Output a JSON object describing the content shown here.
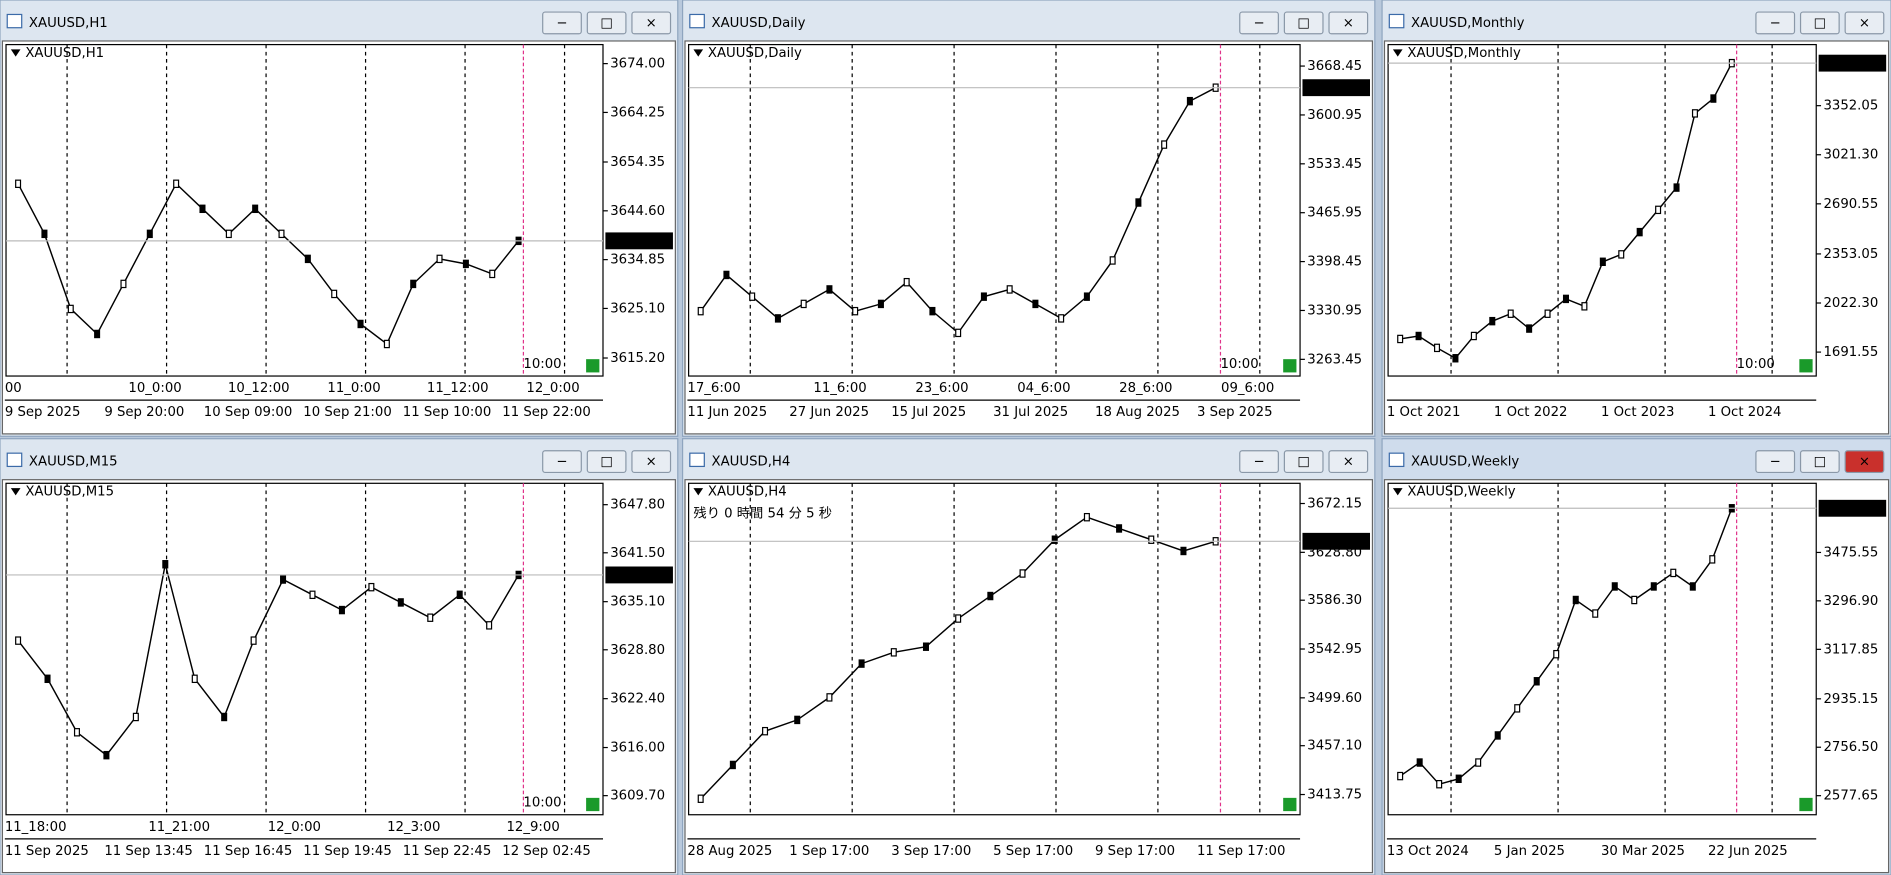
{
  "windows": [
    {
      "title": "XAUUSD,H1",
      "label": "XAUUSD,H1",
      "price_box": "3638.60",
      "time_label": "10:00",
      "active": false,
      "ylim": [
        3611.6,
        3677.8
      ],
      "yticks": [
        {
          "value": 3674.0,
          "label": "3674.00"
        },
        {
          "value": 3664.25,
          "label": "3664.25"
        },
        {
          "value": 3654.35,
          "label": "3654.35"
        },
        {
          "value": 3644.6,
          "label": "3644.60"
        },
        {
          "value": 3634.85,
          "label": "3634.85"
        },
        {
          "value": 3625.1,
          "label": "3625.10"
        },
        {
          "value": 3615.2,
          "label": "3615.20"
        }
      ],
      "inner_labels": [
        "00",
        "10_0:00",
        "10_12:00",
        "11_0:00",
        "11_12:00",
        "12_0:00"
      ],
      "outer_labels": [
        "9 Sep 2025",
        "9 Sep 20:00",
        "10 Sep 09:00",
        "10 Sep 21:00",
        "11 Sep 10:00",
        "11 Sep 22:00"
      ],
      "closes": [
        3650,
        3640,
        3625,
        3620,
        3630,
        3640,
        3650,
        3645,
        3640,
        3645,
        3640,
        3635,
        3628,
        3622,
        3618,
        3630,
        3635,
        3634,
        3632,
        3638.6
      ]
    },
    {
      "title": "XAUUSD,Daily",
      "label": "XAUUSD,Daily",
      "price_box": "3638.60",
      "time_label": "10:00",
      "active": false,
      "ylim": [
        3240.4,
        3698.1
      ],
      "yticks": [
        {
          "value": 3668.45,
          "label": "3668.45"
        },
        {
          "value": 3600.95,
          "label": "3600.95"
        },
        {
          "value": 3533.45,
          "label": "3533.45"
        },
        {
          "value": 3465.95,
          "label": "3465.95"
        },
        {
          "value": 3398.45,
          "label": "3398.45"
        },
        {
          "value": 3330.95,
          "label": "3330.95"
        },
        {
          "value": 3263.45,
          "label": "3263.45"
        }
      ],
      "inner_labels": [
        "17_6:00",
        "11_6:00",
        "23_6:00",
        "04_6:00",
        "28_6:00",
        "09_6:00"
      ],
      "outer_labels": [
        "11 Jun 2025",
        "27 Jun 2025",
        "15 Jul 2025",
        "31 Jul 2025",
        "18 Aug 2025",
        "3 Sep 2025"
      ],
      "closes": [
        3330,
        3380,
        3350,
        3320,
        3340,
        3360,
        3330,
        3340,
        3370,
        3330,
        3300,
        3350,
        3360,
        3340,
        3320,
        3350,
        3400,
        3480,
        3560,
        3620,
        3638.6
      ]
    },
    {
      "title": "XAUUSD,Monthly",
      "label": "XAUUSD,Monthly",
      "price_box": "3638.60",
      "time_label": "10:00",
      "active": false,
      "ylim": [
        1530.2,
        3763.6
      ],
      "yticks": [
        {
          "value": 3352.05,
          "label": "3352.05"
        },
        {
          "value": 3021.3,
          "label": "3021.30"
        },
        {
          "value": 2690.55,
          "label": "2690.55"
        },
        {
          "value": 2353.05,
          "label": "2353.05"
        },
        {
          "value": 2022.3,
          "label": "2022.30"
        },
        {
          "value": 1691.55,
          "label": "1691.55"
        }
      ],
      "inner_labels": [],
      "outer_labels": [
        "1 Oct 2021",
        "1 Oct 2022",
        "1 Oct 2023",
        "1 Oct 2024"
      ],
      "closes": [
        1780,
        1800,
        1720,
        1650,
        1800,
        1900,
        1950,
        1850,
        1950,
        2050,
        2000,
        2300,
        2350,
        2500,
        2650,
        2800,
        3300,
        3400,
        3638.6
      ]
    },
    {
      "title": "XAUUSD,M15",
      "label": "XAUUSD,M15",
      "price_box": "3638.60",
      "time_label": "10:00",
      "active": false,
      "ylim": [
        3607.2,
        3650.6
      ],
      "yticks": [
        {
          "value": 3647.8,
          "label": "3647.80"
        },
        {
          "value": 3641.5,
          "label": "3641.50"
        },
        {
          "value": 3635.1,
          "label": "3635.10"
        },
        {
          "value": 3628.8,
          "label": "3628.80"
        },
        {
          "value": 3622.4,
          "label": "3622.40"
        },
        {
          "value": 3616.0,
          "label": "3616.00"
        },
        {
          "value": 3609.7,
          "label": "3609.70"
        }
      ],
      "inner_labels": [
        "11_18:00",
        "11_21:00",
        "12_0:00",
        "12_3:00",
        "12_9:00"
      ],
      "outer_labels": [
        "11 Sep 2025",
        "11 Sep 13:45",
        "11 Sep 16:45",
        "11 Sep 19:45",
        "11 Sep 22:45",
        "12 Sep 02:45"
      ],
      "closes": [
        3630,
        3625,
        3618,
        3615,
        3620,
        3640,
        3625,
        3620,
        3630,
        3638,
        3636,
        3634,
        3637,
        3635,
        3633,
        3636,
        3632,
        3638.6
      ]
    },
    {
      "title": "XAUUSD,H4",
      "label": "XAUUSD,H4",
      "price_box": "3638.60",
      "countdown": "残り 0 時間 54 分 5 秒",
      "active": false,
      "ylim": [
        3395.8,
        3690.1
      ],
      "yticks": [
        {
          "value": 3672.15,
          "label": "3672.15"
        },
        {
          "value": 3628.8,
          "label": "3628.80"
        },
        {
          "value": 3586.3,
          "label": "3586.30"
        },
        {
          "value": 3542.95,
          "label": "3542.95"
        },
        {
          "value": 3499.6,
          "label": "3499.60"
        },
        {
          "value": 3457.1,
          "label": "3457.10"
        },
        {
          "value": 3413.75,
          "label": "3413.75"
        }
      ],
      "inner_labels": [],
      "outer_labels": [
        "28 Aug 2025",
        "1 Sep 17:00",
        "3 Sep 17:00",
        "5 Sep 17:00",
        "9 Sep 17:00",
        "11 Sep 17:00"
      ],
      "closes": [
        3410,
        3440,
        3470,
        3480,
        3500,
        3530,
        3540,
        3545,
        3570,
        3590,
        3610,
        3640,
        3660,
        3650,
        3640,
        3630,
        3638.6
      ]
    },
    {
      "title": "XAUUSD,Weekly",
      "label": "XAUUSD,Weekly",
      "price_box": "3638.60",
      "active": true,
      "ylim": [
        2507.3,
        3730.8
      ],
      "yticks": [
        {
          "value": 3475.55,
          "label": "3475.55"
        },
        {
          "value": 3296.9,
          "label": "3296.90"
        },
        {
          "value": 3117.85,
          "label": "3117.85"
        },
        {
          "value": 2935.15,
          "label": "2935.15"
        },
        {
          "value": 2756.5,
          "label": "2756.50"
        },
        {
          "value": 2577.65,
          "label": "2577.65"
        }
      ],
      "inner_labels": [],
      "outer_labels": [
        "13 Oct 2024",
        "5 Jan 2025",
        "30 Mar 2025",
        "22 Jun 2025"
      ],
      "closes": [
        2650,
        2700,
        2620,
        2640,
        2700,
        2800,
        2900,
        3000,
        3100,
        3300,
        3250,
        3350,
        3300,
        3350,
        3400,
        3350,
        3450,
        3638.6
      ]
    }
  ]
}
